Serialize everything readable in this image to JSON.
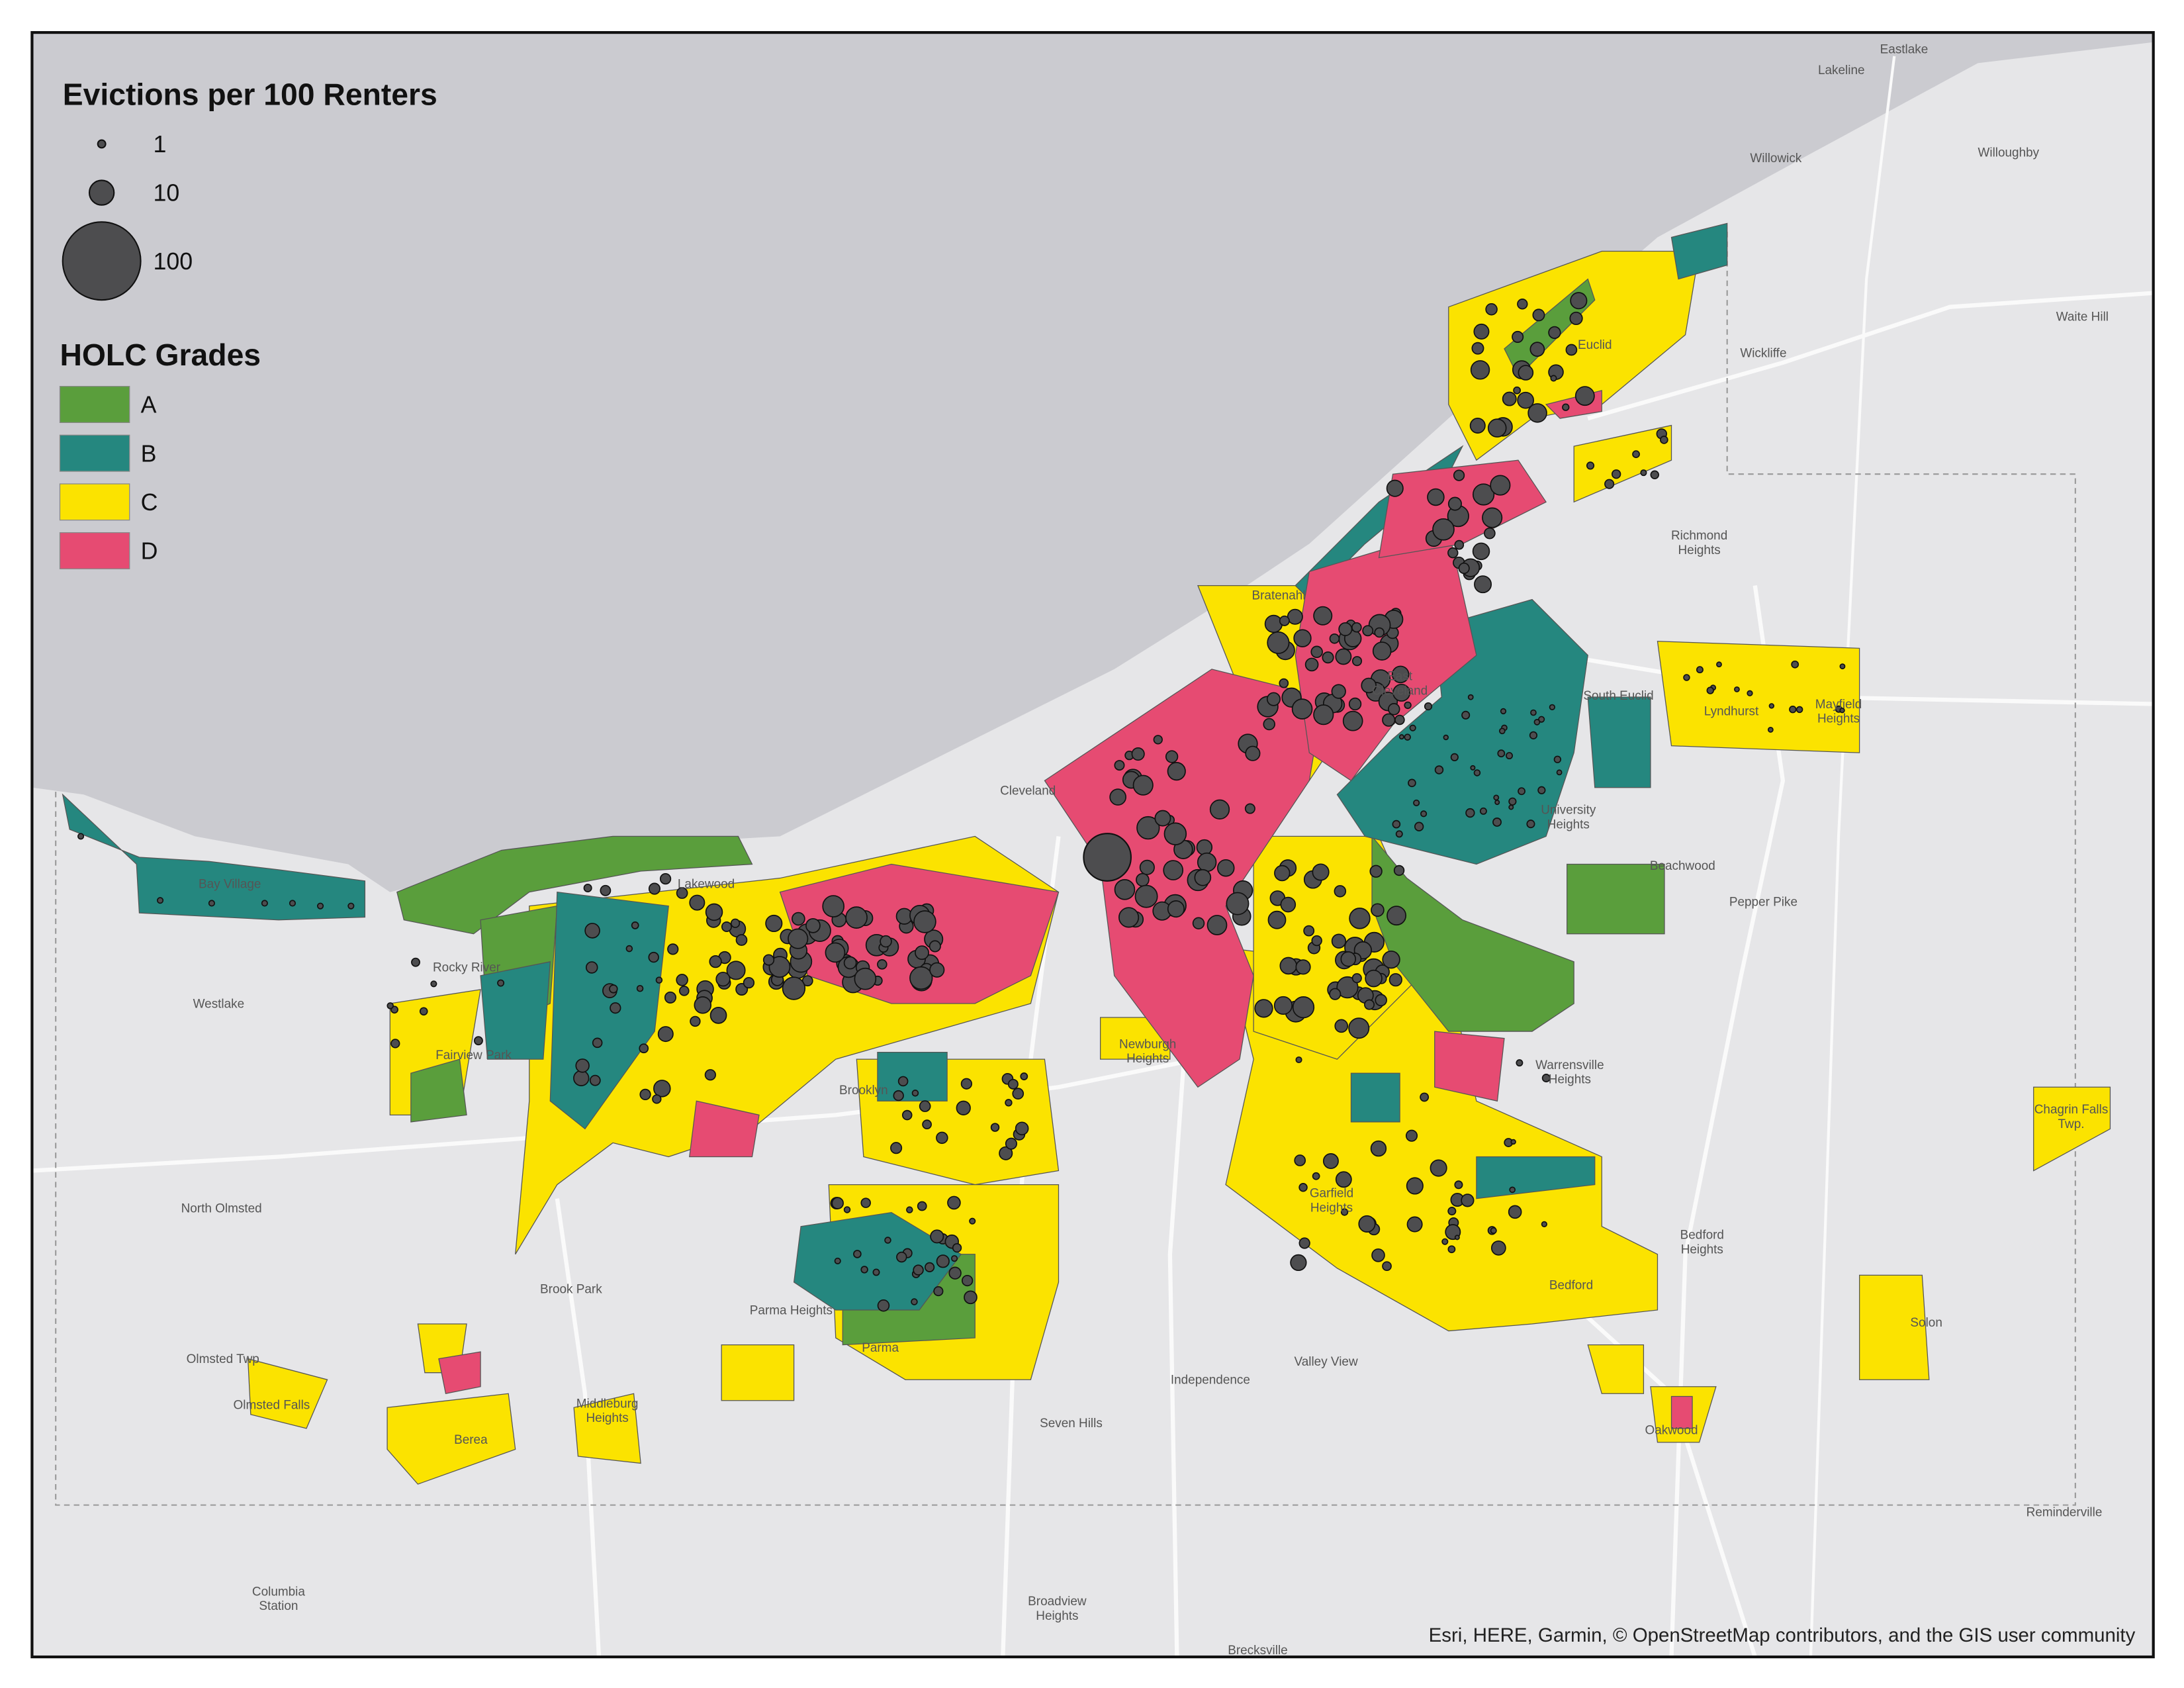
{
  "legend": {
    "size_title": "Evictions per 100 Renters",
    "sizes": [
      1,
      10,
      100
    ],
    "grade_title": "HOLC Grades",
    "grades": [
      {
        "label": "A",
        "color": "#5a9e3c"
      },
      {
        "label": "B",
        "color": "#25877f"
      },
      {
        "label": "C",
        "color": "#fbe300"
      },
      {
        "label": "D",
        "color": "#e64b72"
      }
    ]
  },
  "places": [
    "Eastlake",
    "Lakeline",
    "Willowick",
    "Willoughby",
    "Waite Hill",
    "Wickliffe",
    "Euclid",
    "Richmond Heights",
    "Bratenahl",
    "East Cleveland",
    "South Euclid",
    "Lyndhurst",
    "Mayfield Heights",
    "Cleveland",
    "University Heights",
    "Beachwood",
    "Pepper Pike",
    "Bay Village",
    "Lakewood",
    "Rocky River",
    "Westlake",
    "Fairview Park",
    "North Olmsted",
    "Brooklyn",
    "Newburgh Heights",
    "Warrensville Heights",
    "Garfield Heights",
    "Chagrin Falls Twp.",
    "Bedford Heights",
    "Bedford",
    "Solon",
    "Brook Park",
    "Parma Heights",
    "Parma",
    "Olmsted Twp",
    "Olmsted Falls",
    "Berea",
    "Middleburg Heights",
    "Independence",
    "Valley View",
    "Seven Hills",
    "Oakwood",
    "Reminderville",
    "Columbia Station",
    "Broadview Heights",
    "Brecksville"
  ],
  "attribution": "Esri, HERE, Garmin, © OpenStreetMap contributors, and the GIS user community"
}
